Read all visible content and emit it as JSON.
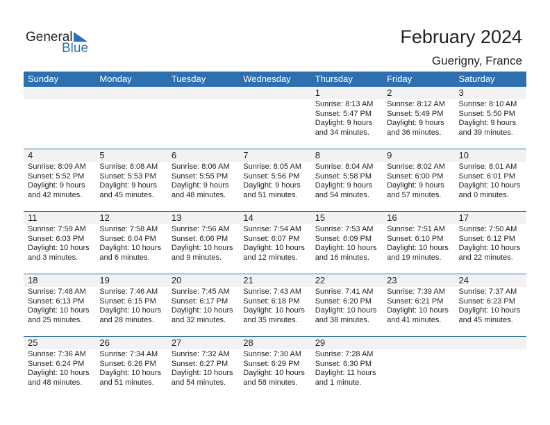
{
  "logo": {
    "general": "General",
    "blue": "Blue"
  },
  "title": "February 2024",
  "location": "Guerigny, France",
  "days": [
    "Sunday",
    "Monday",
    "Tuesday",
    "Wednesday",
    "Thursday",
    "Friday",
    "Saturday"
  ],
  "weeks": [
    [
      null,
      null,
      null,
      null,
      {
        "d": "1",
        "rise": "Sunrise: 8:13 AM",
        "set": "Sunset: 5:47 PM",
        "dl1": "Daylight: 9 hours",
        "dl2": "and 34 minutes."
      },
      {
        "d": "2",
        "rise": "Sunrise: 8:12 AM",
        "set": "Sunset: 5:49 PM",
        "dl1": "Daylight: 9 hours",
        "dl2": "and 36 minutes."
      },
      {
        "d": "3",
        "rise": "Sunrise: 8:10 AM",
        "set": "Sunset: 5:50 PM",
        "dl1": "Daylight: 9 hours",
        "dl2": "and 39 minutes."
      }
    ],
    [
      {
        "d": "4",
        "rise": "Sunrise: 8:09 AM",
        "set": "Sunset: 5:52 PM",
        "dl1": "Daylight: 9 hours",
        "dl2": "and 42 minutes."
      },
      {
        "d": "5",
        "rise": "Sunrise: 8:08 AM",
        "set": "Sunset: 5:53 PM",
        "dl1": "Daylight: 9 hours",
        "dl2": "and 45 minutes."
      },
      {
        "d": "6",
        "rise": "Sunrise: 8:06 AM",
        "set": "Sunset: 5:55 PM",
        "dl1": "Daylight: 9 hours",
        "dl2": "and 48 minutes."
      },
      {
        "d": "7",
        "rise": "Sunrise: 8:05 AM",
        "set": "Sunset: 5:56 PM",
        "dl1": "Daylight: 9 hours",
        "dl2": "and 51 minutes."
      },
      {
        "d": "8",
        "rise": "Sunrise: 8:04 AM",
        "set": "Sunset: 5:58 PM",
        "dl1": "Daylight: 9 hours",
        "dl2": "and 54 minutes."
      },
      {
        "d": "9",
        "rise": "Sunrise: 8:02 AM",
        "set": "Sunset: 6:00 PM",
        "dl1": "Daylight: 9 hours",
        "dl2": "and 57 minutes."
      },
      {
        "d": "10",
        "rise": "Sunrise: 8:01 AM",
        "set": "Sunset: 6:01 PM",
        "dl1": "Daylight: 10 hours",
        "dl2": "and 0 minutes."
      }
    ],
    [
      {
        "d": "11",
        "rise": "Sunrise: 7:59 AM",
        "set": "Sunset: 6:03 PM",
        "dl1": "Daylight: 10 hours",
        "dl2": "and 3 minutes."
      },
      {
        "d": "12",
        "rise": "Sunrise: 7:58 AM",
        "set": "Sunset: 6:04 PM",
        "dl1": "Daylight: 10 hours",
        "dl2": "and 6 minutes."
      },
      {
        "d": "13",
        "rise": "Sunrise: 7:56 AM",
        "set": "Sunset: 6:06 PM",
        "dl1": "Daylight: 10 hours",
        "dl2": "and 9 minutes."
      },
      {
        "d": "14",
        "rise": "Sunrise: 7:54 AM",
        "set": "Sunset: 6:07 PM",
        "dl1": "Daylight: 10 hours",
        "dl2": "and 12 minutes."
      },
      {
        "d": "15",
        "rise": "Sunrise: 7:53 AM",
        "set": "Sunset: 6:09 PM",
        "dl1": "Daylight: 10 hours",
        "dl2": "and 16 minutes."
      },
      {
        "d": "16",
        "rise": "Sunrise: 7:51 AM",
        "set": "Sunset: 6:10 PM",
        "dl1": "Daylight: 10 hours",
        "dl2": "and 19 minutes."
      },
      {
        "d": "17",
        "rise": "Sunrise: 7:50 AM",
        "set": "Sunset: 6:12 PM",
        "dl1": "Daylight: 10 hours",
        "dl2": "and 22 minutes."
      }
    ],
    [
      {
        "d": "18",
        "rise": "Sunrise: 7:48 AM",
        "set": "Sunset: 6:13 PM",
        "dl1": "Daylight: 10 hours",
        "dl2": "and 25 minutes."
      },
      {
        "d": "19",
        "rise": "Sunrise: 7:46 AM",
        "set": "Sunset: 6:15 PM",
        "dl1": "Daylight: 10 hours",
        "dl2": "and 28 minutes."
      },
      {
        "d": "20",
        "rise": "Sunrise: 7:45 AM",
        "set": "Sunset: 6:17 PM",
        "dl1": "Daylight: 10 hours",
        "dl2": "and 32 minutes."
      },
      {
        "d": "21",
        "rise": "Sunrise: 7:43 AM",
        "set": "Sunset: 6:18 PM",
        "dl1": "Daylight: 10 hours",
        "dl2": "and 35 minutes."
      },
      {
        "d": "22",
        "rise": "Sunrise: 7:41 AM",
        "set": "Sunset: 6:20 PM",
        "dl1": "Daylight: 10 hours",
        "dl2": "and 38 minutes."
      },
      {
        "d": "23",
        "rise": "Sunrise: 7:39 AM",
        "set": "Sunset: 6:21 PM",
        "dl1": "Daylight: 10 hours",
        "dl2": "and 41 minutes."
      },
      {
        "d": "24",
        "rise": "Sunrise: 7:37 AM",
        "set": "Sunset: 6:23 PM",
        "dl1": "Daylight: 10 hours",
        "dl2": "and 45 minutes."
      }
    ],
    [
      {
        "d": "25",
        "rise": "Sunrise: 7:36 AM",
        "set": "Sunset: 6:24 PM",
        "dl1": "Daylight: 10 hours",
        "dl2": "and 48 minutes."
      },
      {
        "d": "26",
        "rise": "Sunrise: 7:34 AM",
        "set": "Sunset: 6:26 PM",
        "dl1": "Daylight: 10 hours",
        "dl2": "and 51 minutes."
      },
      {
        "d": "27",
        "rise": "Sunrise: 7:32 AM",
        "set": "Sunset: 6:27 PM",
        "dl1": "Daylight: 10 hours",
        "dl2": "and 54 minutes."
      },
      {
        "d": "28",
        "rise": "Sunrise: 7:30 AM",
        "set": "Sunset: 6:29 PM",
        "dl1": "Daylight: 10 hours",
        "dl2": "and 58 minutes."
      },
      {
        "d": "29",
        "rise": "Sunrise: 7:28 AM",
        "set": "Sunset: 6:30 PM",
        "dl1": "Daylight: 11 hours",
        "dl2": "and 1 minute."
      },
      null,
      null
    ]
  ],
  "colors": {
    "header": "#2e6fb0",
    "logo_blue": "#2a72b8",
    "day_strip": "#f2f2f2"
  }
}
